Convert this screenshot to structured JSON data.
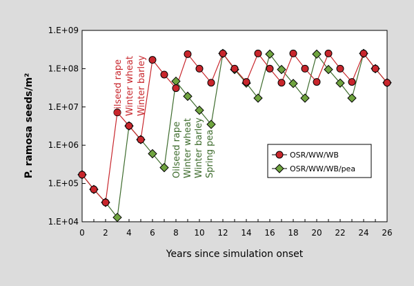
{
  "chart_data": {
    "type": "line",
    "ylabel": "P. ramosa seeds/m²",
    "xlabel": "Years since simulation onset",
    "yscale": "log",
    "ylim": [
      10000,
      1000000000
    ],
    "xlim": [
      0,
      26
    ],
    "x_ticks": [
      0,
      2,
      4,
      6,
      8,
      10,
      12,
      14,
      16,
      18,
      20,
      22,
      24,
      26
    ],
    "y_ticks": [
      {
        "value": 10000,
        "label": "1.E+04"
      },
      {
        "value": 100000,
        "label": "1.E+05"
      },
      {
        "value": 1000000,
        "label": "1.E+06"
      },
      {
        "value": 10000000,
        "label": "1.E+07"
      },
      {
        "value": 100000000,
        "label": "1.E+08"
      },
      {
        "value": 1000000000,
        "label": "1.E+09"
      }
    ],
    "grid": false,
    "legend_position": "right",
    "series": [
      {
        "name": "OSR/WW/WB",
        "marker": "circle",
        "color": "#c8262c",
        "fill": "#c8262c",
        "x": [
          0,
          1,
          2,
          3,
          4,
          5,
          6,
          7,
          8,
          9,
          10,
          11,
          12,
          13,
          14,
          15,
          16,
          17,
          18,
          19,
          20,
          21,
          22,
          23,
          24,
          25,
          26
        ],
        "y": [
          170000,
          70000,
          32000,
          7200000,
          3200000,
          1400000,
          170000000,
          70000000,
          31000000,
          240000000,
          100000000,
          43000000,
          250000000,
          100000000,
          45000000,
          250000000,
          100000000,
          43000000,
          250000000,
          100000000,
          45000000,
          250000000,
          100000000,
          45000000,
          250000000,
          100000000,
          43000000
        ]
      },
      {
        "name": "OSR/WW/WB/pea",
        "marker": "diamond",
        "color": "#3d6b2c",
        "fill": "#6fa43f",
        "x": [
          0,
          1,
          2,
          3,
          4,
          5,
          6,
          7,
          8,
          9,
          10,
          11,
          12,
          13,
          14,
          15,
          16,
          17,
          18,
          19,
          20,
          21,
          22,
          23,
          24,
          25,
          26
        ],
        "y": [
          170000,
          70000,
          32000,
          13000,
          3200000,
          1400000,
          600000,
          260000,
          47000000,
          19000000,
          8200000,
          3500000,
          250000000,
          95000000,
          42000000,
          17000000,
          240000000,
          95000000,
          41000000,
          17000000,
          240000000,
          95000000,
          42000000,
          17000000,
          250000000,
          100000000,
          43000000
        ]
      }
    ],
    "annotations": [
      {
        "lines": [
          "Oilseed rape",
          "Winter wheat",
          "Winter barley"
        ],
        "color": "#c8262c",
        "x": 3
      },
      {
        "lines": [
          "Oilseed rape",
          "Winter wheat",
          "Winter barley",
          "Spring pea"
        ],
        "color": "#3d6b2c",
        "x": 8
      }
    ]
  }
}
